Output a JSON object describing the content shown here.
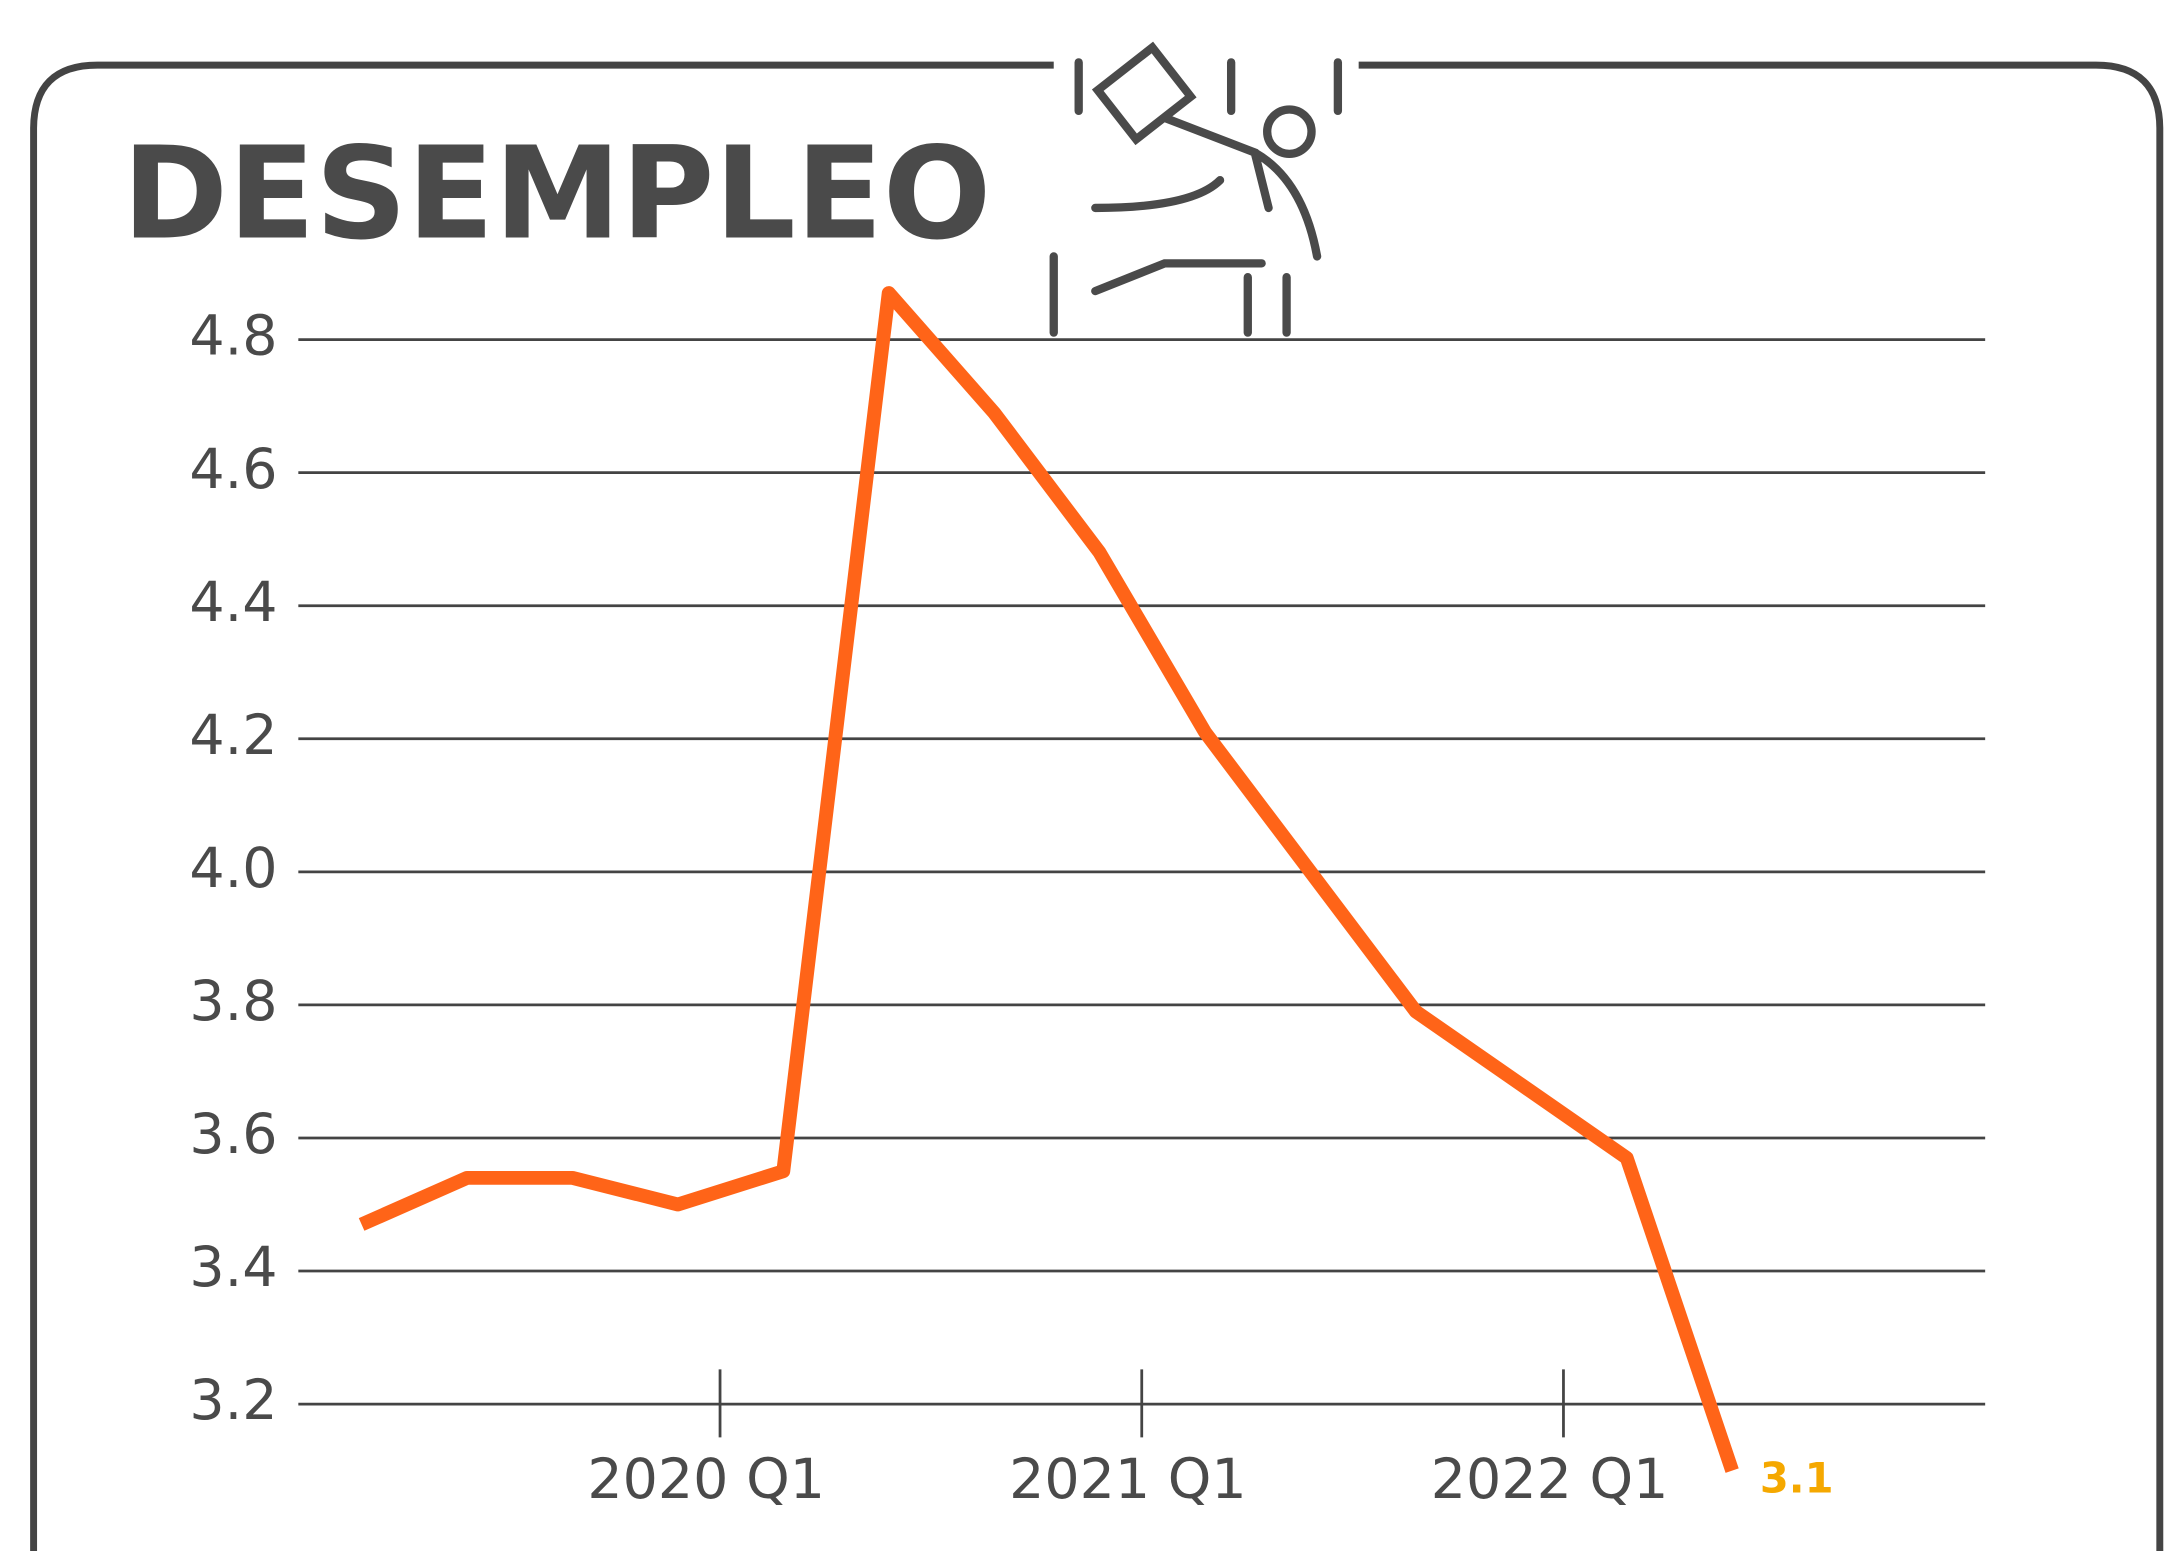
{
  "chart_data": {
    "type": "line",
    "title": "DESEMPLEO",
    "x": [
      -3.4,
      -2.4,
      -1.4,
      -0.4,
      0.6,
      1.6,
      2.6,
      3.6,
      4.6,
      5.6,
      6.6,
      7.6,
      8.6,
      9.6
    ],
    "series": [
      {
        "name": null,
        "color": "#ff6418",
        "values": [
          3.47,
          3.54,
          3.54,
          3.5,
          3.55,
          4.87,
          4.69,
          4.48,
          4.21,
          4.0,
          3.79,
          3.68,
          3.57,
          3.1
        ]
      }
    ],
    "xlim": [
      -4,
      12
    ],
    "xticks": [
      {
        "value": 0,
        "label": "2020 Q1"
      },
      {
        "value": 4,
        "label": "2021 Q1"
      },
      {
        "value": 8,
        "label": "2022 Q1"
      }
    ],
    "ylim": [
      3.1,
      4.9
    ],
    "yticks": [
      3.2,
      3.4,
      3.6,
      3.8,
      {
        "value": 4.0,
        "label": "4.0"
      },
      4.2,
      4.4,
      4.6,
      4.8
    ],
    "grid": true,
    "label_color": "#f5a800"
  }
}
